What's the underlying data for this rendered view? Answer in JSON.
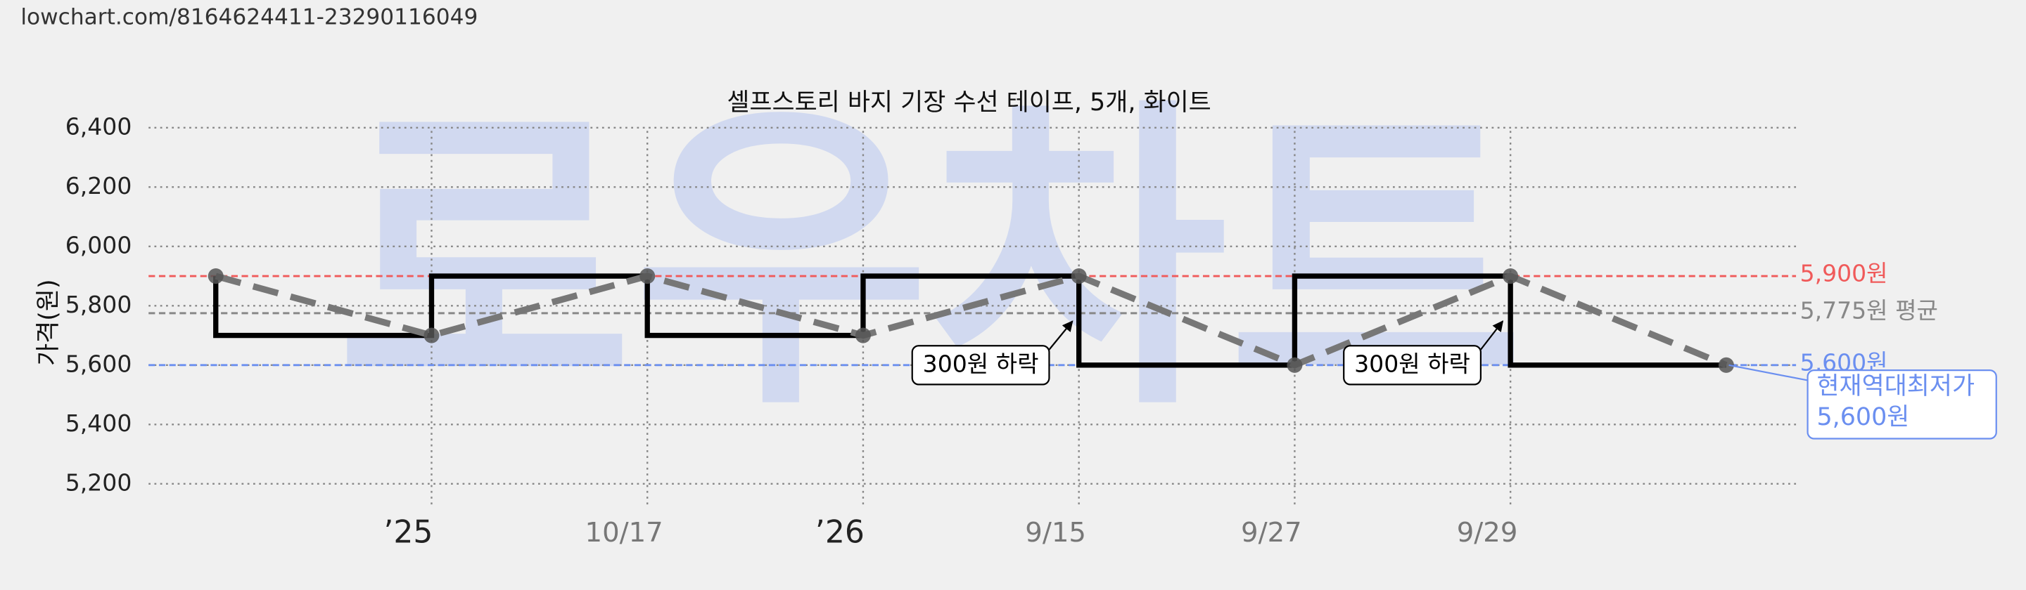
{
  "header": {
    "url": "lowchart.com/8164624411-23290116049"
  },
  "watermark": "로우차트",
  "chart_data": {
    "type": "line",
    "title": "셀프스토리 바지 기장 수선 테이프, 5개, 화이트",
    "y_label": "가격(원)",
    "categories": [
      null,
      "’25",
      "10/17",
      "’26",
      "9/15",
      "9/27",
      "9/29",
      null
    ],
    "values": [
      5900,
      5700,
      5900,
      5700,
      5900,
      5600,
      5900,
      5600
    ],
    "color": "#777777",
    "step_color": "#000000",
    "ylim": [
      5100,
      6450
    ],
    "yticks": [
      {
        "value": 5200,
        "label": "5,200"
      },
      {
        "value": 5400,
        "label": "5,400"
      },
      {
        "value": 5600,
        "label": "5,600"
      },
      {
        "value": 5800,
        "label": "5,800"
      },
      {
        "value": 6000,
        "label": "6,000"
      },
      {
        "value": 6200,
        "label": "6,200"
      },
      {
        "value": 6400,
        "label": "6,400"
      }
    ],
    "grid": true,
    "reference_lines": [
      {
        "value": 5900,
        "label": "5,900원",
        "color": "#f05a5a"
      },
      {
        "value": 5775,
        "label": "5,775원 평균",
        "color": "#888888"
      },
      {
        "value": 5600,
        "label": "5,600원",
        "color": "#6b8ff0"
      }
    ],
    "annotations": [
      {
        "text": "300원 하락"
      },
      {
        "text": "300원 하락"
      }
    ],
    "callout": {
      "lines": [
        "현재역대최저가",
        "5,600원"
      ],
      "color": "#6b8ff0"
    }
  }
}
